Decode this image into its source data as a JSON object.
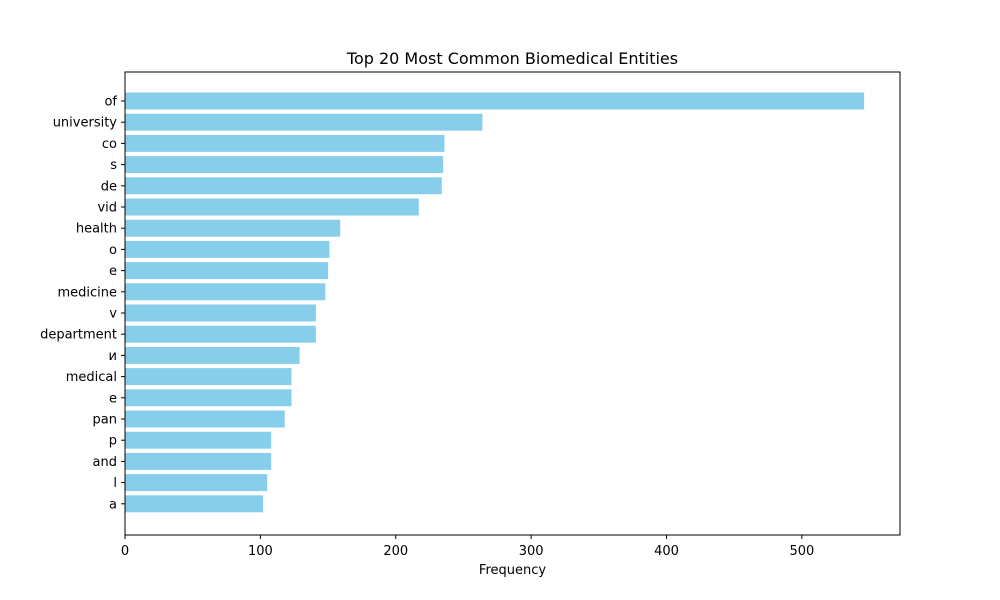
{
  "chart_data": {
    "type": "bar",
    "orientation": "horizontal",
    "title": "Top 20 Most Common Biomedical Entities",
    "xlabel": "Frequency",
    "ylabel": "",
    "categories": [
      "of",
      "university",
      "co",
      "s",
      "de",
      "vid",
      "health",
      "o",
      "e",
      "medicine",
      "v",
      "department",
      "и",
      "medical",
      "e",
      "pan",
      "p",
      "and",
      "l",
      "a"
    ],
    "values": [
      546,
      264,
      236,
      235,
      234,
      217,
      159,
      151,
      150,
      148,
      141,
      141,
      129,
      123,
      123,
      118,
      108,
      108,
      105,
      102
    ],
    "xlim": [
      0,
      572.5
    ],
    "xticks": [
      0,
      100,
      200,
      300,
      400,
      500
    ],
    "grid": false,
    "bar_color": "#87ceeb"
  }
}
